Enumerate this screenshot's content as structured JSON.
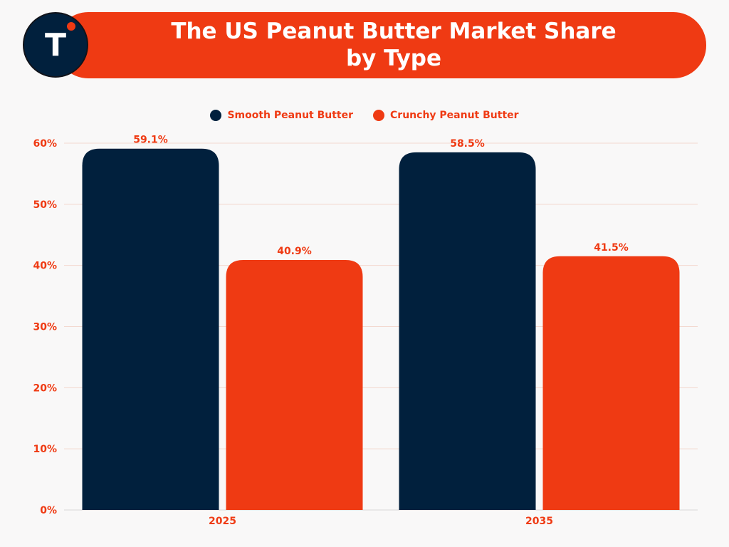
{
  "title_line1": "The US Peanut Butter Market Share",
  "title_line2": "by Type",
  "logo": {
    "letter": "T"
  },
  "colors": {
    "smooth": "#01203d",
    "crunchy": "#ef3a13",
    "text_accent": "#ef3a13",
    "background": "#f9f8f8"
  },
  "chart_data": {
    "type": "bar",
    "title": "The US Peanut Butter Market Share by Type",
    "categories": [
      "2025",
      "2035"
    ],
    "series": [
      {
        "name": "Smooth Peanut Butter",
        "values": [
          59.1,
          58.5
        ],
        "labels": [
          "59.1%",
          "58.5%"
        ],
        "color": "#01203d"
      },
      {
        "name": "Crunchy Peanut Butter",
        "values": [
          40.9,
          41.5
        ],
        "labels": [
          "40.9%",
          "41.5%"
        ],
        "color": "#ef3a13"
      }
    ],
    "xlabel": "",
    "ylabel": "",
    "ylim": [
      0,
      60
    ],
    "yticks": [
      0,
      10,
      20,
      30,
      40,
      50,
      60
    ],
    "ytick_labels": [
      "0%",
      "10%",
      "20%",
      "30%",
      "40%",
      "50%",
      "60%"
    ],
    "grid": true,
    "legend_position": "top-center"
  }
}
